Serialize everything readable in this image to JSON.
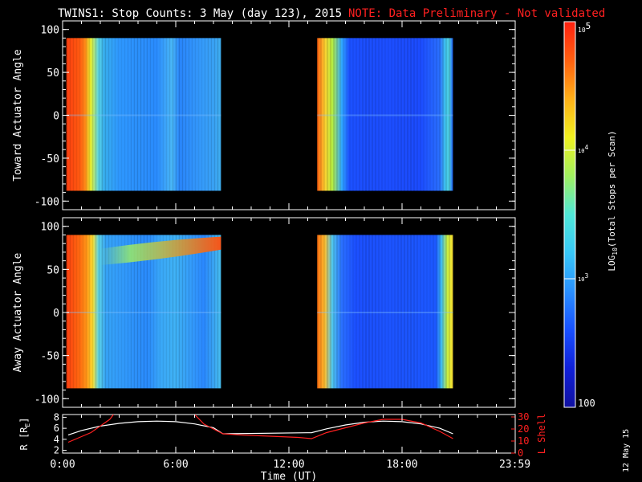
{
  "title": {
    "main": "TWINS1: Stop Counts:  3 May (day 123), 2015",
    "note": "NOTE: Data Preliminary - Not validated",
    "note_color": "#ff2020"
  },
  "stamp": "12 May 15",
  "chart_data": [
    {
      "type": "heatmap",
      "name": "toward",
      "ylabel": "Toward Actuator Angle",
      "ylim": [
        -110,
        110
      ],
      "yticks": [
        "100",
        "50",
        "0",
        "-50",
        "-100"
      ],
      "ytick_values": [
        100,
        50,
        0,
        -50,
        -100
      ],
      "data_y_range": [
        -88,
        90
      ],
      "blocks": [
        {
          "x_start_h": 0.2,
          "x_end_h": 8.4,
          "x_profile": [
            [
              0.2,
              "#ff4010"
            ],
            [
              0.9,
              "#ff5a10"
            ],
            [
              1.2,
              "#ff8a18"
            ],
            [
              1.5,
              "#e8f030"
            ],
            [
              1.9,
              "#5cd8e8"
            ],
            [
              2.2,
              "#38b0f0"
            ],
            [
              3.0,
              "#2e98ff"
            ],
            [
              5.0,
              "#2a8cff"
            ],
            [
              5.8,
              "#4ab8f8"
            ],
            [
              6.2,
              "#2a88ff"
            ],
            [
              8.0,
              "#3aa4f8"
            ],
            [
              8.4,
              "#40b0f0"
            ]
          ]
        },
        {
          "x_start_h": 13.5,
          "x_end_h": 20.7,
          "x_profile": [
            [
              13.5,
              "#ff6010"
            ],
            [
              13.9,
              "#ffd030"
            ],
            [
              14.3,
              "#b8f040"
            ],
            [
              14.8,
              "#30a8ff"
            ],
            [
              15.2,
              "#1c50ff"
            ],
            [
              19.0,
              "#1c4cff"
            ],
            [
              20.0,
              "#2a70ff"
            ],
            [
              20.3,
              "#40c8f0"
            ],
            [
              20.5,
              "#50d0e0"
            ],
            [
              20.7,
              "#2060ff"
            ]
          ]
        }
      ]
    },
    {
      "type": "heatmap",
      "name": "away",
      "ylabel": "Away Actuator Angle",
      "ylim": [
        -110,
        110
      ],
      "yticks": [
        "100",
        "50",
        "0",
        "-50",
        "-100"
      ],
      "ytick_values": [
        100,
        50,
        0,
        -50,
        -100
      ],
      "data_y_range": [
        -88,
        90
      ],
      "blocks": [
        {
          "x_start_h": 0.2,
          "x_end_h": 8.4,
          "x_profile": [
            [
              0.2,
              "#ff4010"
            ],
            [
              0.9,
              "#ff6a10"
            ],
            [
              1.3,
              "#ff9a18"
            ],
            [
              1.6,
              "#ffe030"
            ],
            [
              1.9,
              "#60d8e8"
            ],
            [
              2.3,
              "#36a4f8"
            ],
            [
              4.5,
              "#2a8cff"
            ],
            [
              5.2,
              "#3aa8f8"
            ],
            [
              6.0,
              "#40b4f8"
            ],
            [
              7.5,
              "#2a88ff"
            ],
            [
              8.4,
              "#48c0f0"
            ]
          ],
          "band": {
            "y_from": 55,
            "y_to": 88,
            "color_start": "#a0f060",
            "color_end": "#ff5010"
          }
        },
        {
          "x_start_h": 13.5,
          "x_end_h": 20.7,
          "x_profile": [
            [
              13.5,
              "#ff7010"
            ],
            [
              13.9,
              "#ffc030"
            ],
            [
              14.3,
              "#50c8f0"
            ],
            [
              14.8,
              "#2a70ff"
            ],
            [
              15.5,
              "#1c50ff"
            ],
            [
              19.8,
              "#1c58ff"
            ],
            [
              20.1,
              "#40c0f0"
            ],
            [
              20.4,
              "#c8f040"
            ],
            [
              20.7,
              "#ffe030"
            ]
          ]
        }
      ]
    },
    {
      "type": "line",
      "name": "orbit",
      "xlabel": "Time (UT)",
      "ylabel_left": "R [R",
      "ylabel_left_sub": "E",
      "ylabel_left_end": "]",
      "ylabel_right": "L Shell",
      "xlim": [
        0,
        24
      ],
      "x_ticks": [
        "0:00",
        "6:00",
        "12:00",
        "18:00",
        "23:59"
      ],
      "x_tick_values": [
        0,
        6,
        12,
        18,
        23.98
      ],
      "y_left_lim": [
        1.5,
        8.5
      ],
      "y_left_ticks": [
        "8",
        "6",
        "4",
        "2"
      ],
      "y_left_tick_values": [
        8,
        6,
        4,
        2
      ],
      "y_right_lim": [
        0,
        32
      ],
      "y_right_ticks": [
        "30",
        "20",
        "10",
        "0"
      ],
      "y_right_tick_values": [
        30,
        20,
        10,
        0
      ],
      "series": [
        {
          "color": "#ffffff",
          "x": [
            0.3,
            1.0,
            2.0,
            3.0,
            4.0,
            5.0,
            6.0,
            7.0,
            8.0,
            8.5,
            13.2,
            14.0,
            15.0,
            16.0,
            17.0,
            18.0,
            19.0,
            20.0,
            20.7
          ],
          "y": [
            4.8,
            5.6,
            6.4,
            6.9,
            7.2,
            7.3,
            7.2,
            6.8,
            6.1,
            5.0,
            5.2,
            5.9,
            6.6,
            7.1,
            7.3,
            7.2,
            6.8,
            6.0,
            5.0
          ]
        },
        {
          "color": "#ff2020",
          "x": [
            0.3,
            1.5,
            2.5,
            2.7
          ],
          "y": [
            9,
            17,
            28,
            32
          ]
        },
        {
          "color": "#ff2020",
          "x": [
            7.0,
            7.5,
            8.5,
            9.5,
            11.0,
            12.5,
            13.2,
            14.0,
            15.0,
            16.0,
            17.0,
            18.0,
            19.0,
            20.0,
            20.7
          ],
          "y": [
            32,
            24,
            16,
            15,
            14,
            13,
            12,
            17,
            21,
            25,
            28,
            28,
            25,
            18,
            12
          ]
        }
      ]
    }
  ],
  "colorbar": {
    "label_main": "LOG",
    "label_sub": "10",
    "label_end": "(Total Stops per Scan)",
    "top_label_base": "10",
    "top_label_exp": "5",
    "mid_label_base": "10",
    "mid_label_exp": "4",
    "low_label_base": "10",
    "low_label_exp": "3",
    "bottom_label": "100",
    "tick_values": [
      100000,
      10000,
      1000,
      100
    ],
    "range": [
      100,
      100000
    ],
    "colors": [
      "#1010a0",
      "#1020d8",
      "#1850ff",
      "#2a90ff",
      "#38c8f8",
      "#50e8d8",
      "#a0f060",
      "#f0f020",
      "#ffb018",
      "#ff6010",
      "#ff2010"
    ]
  }
}
